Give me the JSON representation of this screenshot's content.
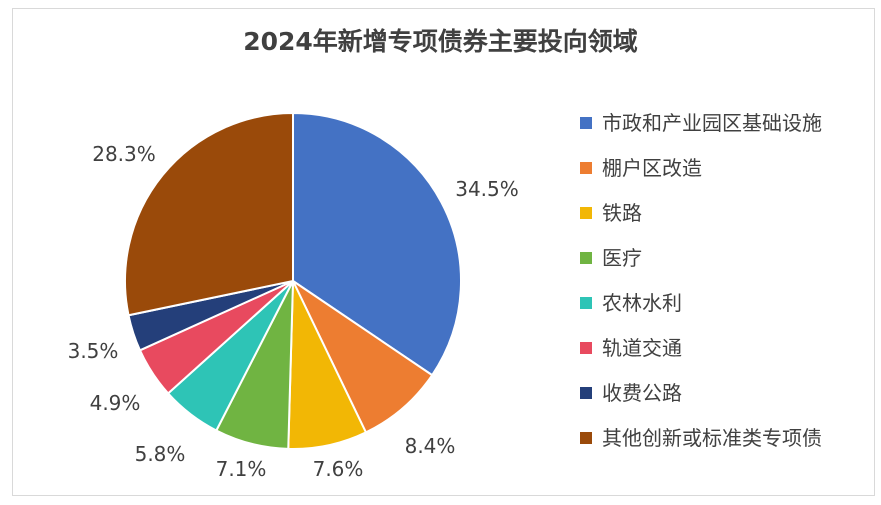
{
  "chart_data": {
    "type": "pie",
    "title": "2024年新增专项债券主要投向领域",
    "legend_position": "right",
    "unit": "%",
    "slices": [
      {
        "name": "市政和产业园区基础设施",
        "value": 34.5,
        "label": "34.5%",
        "color": "#4472C4"
      },
      {
        "name": "棚户区改造",
        "value": 8.4,
        "label": "8.4%",
        "color": "#ED7D31"
      },
      {
        "name": "铁路",
        "value": 7.6,
        "label": "7.6%",
        "color": "#F2B705"
      },
      {
        "name": "医疗",
        "value": 7.1,
        "label": "7.1%",
        "color": "#70B442"
      },
      {
        "name": "农林水利",
        "value": 5.8,
        "label": "5.8%",
        "color": "#2EC4B6"
      },
      {
        "name": "轨道交通",
        "value": 4.9,
        "label": "4.9%",
        "color": "#E84A5F"
      },
      {
        "name": "收费公路",
        "value": 3.5,
        "label": "3.5%",
        "color": "#243F7A"
      },
      {
        "name": "其他创新或标准类专项债",
        "value": 28.3,
        "label": "28.3%",
        "color": "#9A4A0A"
      }
    ]
  }
}
